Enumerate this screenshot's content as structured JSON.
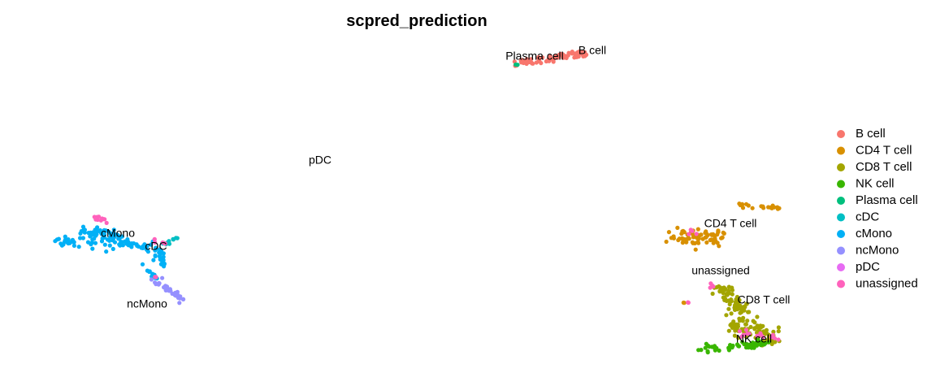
{
  "chart_data": {
    "type": "scatter",
    "title": "scpred_prediction",
    "xlabel": "",
    "ylabel": "",
    "axes_visible": false,
    "grid": false,
    "legend_position": "right",
    "legend": [
      {
        "name": "B cell",
        "color": "#F8766D"
      },
      {
        "name": "CD4 T cell",
        "color": "#D89000"
      },
      {
        "name": "CD8 T cell",
        "color": "#A3A500"
      },
      {
        "name": "NK cell",
        "color": "#39B600"
      },
      {
        "name": "Plasma cell",
        "color": "#00BF7D"
      },
      {
        "name": "cDC",
        "color": "#00BFC4"
      },
      {
        "name": "cMono",
        "color": "#00B0F6"
      },
      {
        "name": "ncMono",
        "color": "#9590FF"
      },
      {
        "name": "pDC",
        "color": "#E76BF3"
      },
      {
        "name": "unassigned",
        "color": "#FF62BC"
      }
    ],
    "cluster_labels": [
      {
        "text": "B cell",
        "x": 729,
        "y": 63
      },
      {
        "text": "Plasma cell",
        "x": 658,
        "y": 70
      },
      {
        "text": "pDC",
        "x": 394,
        "y": 198
      },
      {
        "text": "cMono",
        "x": 145,
        "y": 288
      },
      {
        "text": "cDC",
        "x": 192,
        "y": 304
      },
      {
        "text": "ncMono",
        "x": 181,
        "y": 375
      },
      {
        "text": "CD4 T cell",
        "x": 899,
        "y": 276
      },
      {
        "text": "unassigned",
        "x": 887,
        "y": 334
      },
      {
        "text": "CD8 T cell",
        "x": 940,
        "y": 370
      },
      {
        "text": "NK cell",
        "x": 928,
        "y": 418
      }
    ],
    "note_units": "x/y in embedding units; y increases downward as drawn",
    "point_groups": [
      {
        "series": "B cell",
        "n": 70,
        "segments": [
          [
            635,
            78,
            722,
            65
          ]
        ],
        "spread": 3.5
      },
      {
        "series": "B cell",
        "n": 12,
        "segments": [
          [
            700,
            66,
            722,
            68
          ]
        ],
        "spread": 3
      },
      {
        "series": "Plasma cell",
        "n": 2,
        "segments": [
          [
            634,
            80,
            640,
            78
          ]
        ],
        "spread": 1
      },
      {
        "series": "cMono",
        "n": 110,
        "segments": [
          [
            66,
            298,
            98,
            295
          ],
          [
            98,
            295,
            125,
            285
          ],
          [
            125,
            285,
            160,
            300
          ],
          [
            160,
            300,
            195,
            310
          ],
          [
            195,
            310,
            200,
            325
          ]
        ],
        "spread": 5
      },
      {
        "series": "cMono",
        "n": 40,
        "segments": [
          [
            100,
            282,
            150,
            290
          ],
          [
            110,
            300,
            160,
            303
          ]
        ],
        "spread": 6
      },
      {
        "series": "cMono",
        "n": 10,
        "segments": [
          [
            175,
            325,
            195,
            345
          ]
        ],
        "spread": 3
      },
      {
        "series": "cDC",
        "n": 12,
        "segments": [
          [
            200,
            300,
            220,
            293
          ]
        ],
        "spread": 2.5
      },
      {
        "series": "ncMono",
        "n": 30,
        "segments": [
          [
            190,
            345,
            205,
            355
          ],
          [
            205,
            355,
            225,
            370
          ]
        ],
        "spread": 4
      },
      {
        "series": "unassigned",
        "n": 10,
        "segments": [
          [
            118,
            268,
            130,
            272
          ]
        ],
        "spread": 3
      },
      {
        "series": "unassigned",
        "n": 6,
        "segments": [
          [
            185,
            292,
            205,
            300
          ]
        ],
        "spread": 3
      },
      {
        "series": "unassigned",
        "n": 3,
        "segments": [
          [
            190,
            338,
            192,
            342
          ]
        ],
        "spread": 1
      },
      {
        "series": "CD4 T cell",
        "n": 70,
        "segments": [
          [
            828,
            292,
            892,
            292
          ]
        ],
        "spread": 8
      },
      {
        "series": "CD4 T cell",
        "n": 20,
        "segments": [
          [
            908,
            252,
            960,
            255
          ]
        ],
        "spread": 2.5
      },
      {
        "series": "CD4 T cell",
        "n": 2,
        "segments": [
          [
            840,
            372,
            842,
            372
          ]
        ],
        "spread": 1
      },
      {
        "series": "CD8 T cell",
        "n": 70,
        "segments": [
          [
            882,
            352,
            918,
            385
          ]
        ],
        "spread": 8
      },
      {
        "series": "CD8 T cell",
        "n": 90,
        "segments": [
          [
            895,
            395,
            955,
            415
          ]
        ],
        "spread": 10
      },
      {
        "series": "NK cell",
        "n": 60,
        "segments": [
          [
            862,
            430,
            925,
            425
          ],
          [
            925,
            425,
            945,
            420
          ]
        ],
        "spread": 4
      },
      {
        "series": "unassigned",
        "n": 15,
        "segments": [
          [
            900,
            408,
            960,
            415
          ]
        ],
        "spread": 4
      },
      {
        "series": "unassigned",
        "n": 8,
        "segments": [
          [
            845,
            285,
            860,
            288
          ],
          [
            873,
            350,
            882,
            356
          ]
        ],
        "spread": 3
      },
      {
        "series": "unassigned",
        "n": 2,
        "segments": [
          [
            846,
            372,
            848,
            372
          ]
        ],
        "spread": 1
      }
    ]
  }
}
